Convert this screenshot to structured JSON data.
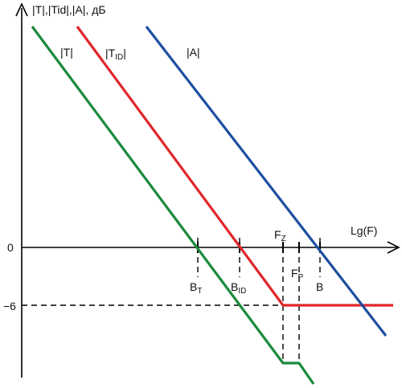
{
  "chart_data": {
    "type": "line",
    "title": "",
    "ylabel": "|T|,|Tid|,|A|, дБ",
    "xlabel": "Lg(F)",
    "x_scale": "log",
    "ytick_labels": [
      {
        "label": "0",
        "value": 0
      },
      {
        "label": "−6",
        "value": -6
      }
    ],
    "x_markers": [
      {
        "name": "B_T",
        "base": "B",
        "sub": "T",
        "axis": "zero"
      },
      {
        "name": "B_ID",
        "base": "B",
        "sub": "ID",
        "axis": "zero"
      },
      {
        "name": "F_Z",
        "base": "F",
        "sub": "Z",
        "axis": "zero"
      },
      {
        "name": "F_P",
        "base": "F",
        "sub": "P",
        "axis": "zero"
      },
      {
        "name": "B",
        "base": "B",
        "sub": "",
        "axis": "zero"
      }
    ],
    "series": [
      {
        "name": "|T|",
        "label_base": "|T|",
        "label_sub": "",
        "color": "#1a8a3c",
        "shape": "falls at constant slope, crosses 0 dB at B_T, flat segment between F_Z and F_P, then keeps falling"
      },
      {
        "name": "|T_ID|",
        "label_base": "|T",
        "label_sub": "ID",
        "label_tail": "|",
        "color": "#e0262b",
        "shape": "falls at constant slope, crosses 0 dB at B_ID, levels off at −6 dB from F_Z onward"
      },
      {
        "name": "|A|",
        "label_base": "|A|",
        "label_sub": "",
        "color": "#1d4fa0",
        "shape": "falls at constant slope, crosses 0 dB at B"
      }
    ],
    "grid": false,
    "legend": "inline labels at top of each line"
  }
}
